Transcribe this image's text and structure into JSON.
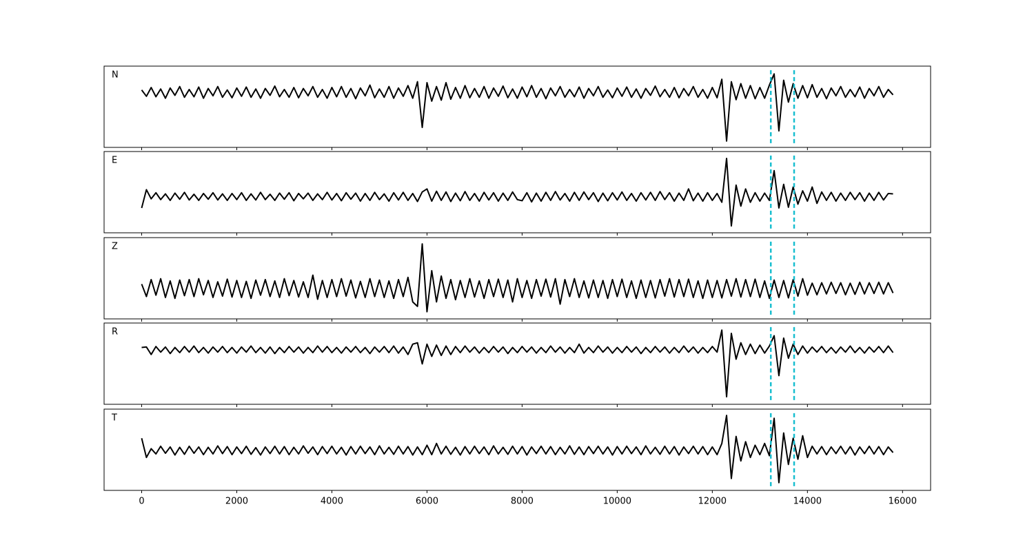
{
  "chart_data": {
    "type": "line",
    "color": "#000000",
    "vline_color": "#17becf",
    "xlim": [
      -790,
      16590
    ],
    "xticks": [
      0,
      2000,
      4000,
      6000,
      8000,
      10000,
      12000,
      14000,
      16000
    ],
    "vlines": [
      13230,
      13720
    ],
    "x": [
      0,
      100,
      200,
      300,
      400,
      500,
      600,
      700,
      800,
      900,
      1000,
      1100,
      1200,
      1300,
      1400,
      1500,
      1600,
      1700,
      1800,
      1900,
      2000,
      2100,
      2200,
      2300,
      2400,
      2500,
      2600,
      2700,
      2800,
      2900,
      3000,
      3100,
      3200,
      3300,
      3400,
      3500,
      3600,
      3700,
      3800,
      3900,
      4000,
      4100,
      4200,
      4300,
      4400,
      4500,
      4600,
      4700,
      4800,
      4900,
      5000,
      5100,
      5200,
      5300,
      5400,
      5500,
      5600,
      5700,
      5800,
      5900,
      6000,
      6100,
      6200,
      6300,
      6400,
      6500,
      6600,
      6700,
      6800,
      6900,
      7000,
      7100,
      7200,
      7300,
      7400,
      7500,
      7600,
      7700,
      7800,
      7900,
      8000,
      8100,
      8200,
      8300,
      8400,
      8500,
      8600,
      8700,
      8800,
      8900,
      9000,
      9100,
      9200,
      9300,
      9400,
      9500,
      9600,
      9700,
      9800,
      9900,
      10000,
      10100,
      10200,
      10300,
      10400,
      10500,
      10600,
      10700,
      10800,
      10900,
      11000,
      11100,
      11200,
      11300,
      11400,
      11500,
      11600,
      11700,
      11800,
      11900,
      12000,
      12100,
      12200,
      12300,
      12400,
      12500,
      12600,
      12700,
      12800,
      12900,
      13000,
      13100,
      13200,
      13300,
      13400,
      13500,
      13600,
      13700,
      13800,
      13900,
      14000,
      14100,
      14200,
      14300,
      14400,
      14500,
      14600,
      14700,
      14800,
      14900,
      15000,
      15100,
      15200,
      15300,
      15400,
      15500,
      15600,
      15700,
      15800
    ],
    "series": [
      {
        "name": "N",
        "ylim": [
          -1.13,
          0.54
        ],
        "values": [
          0.05,
          -0.08,
          0.1,
          -0.09,
          0.07,
          -0.12,
          0.09,
          -0.06,
          0.12,
          -0.1,
          0.06,
          -0.09,
          0.11,
          -0.12,
          0.08,
          -0.07,
          0.12,
          -0.1,
          0.05,
          -0.11,
          0.09,
          -0.08,
          0.11,
          -0.1,
          0.07,
          -0.12,
          0.08,
          -0.06,
          0.13,
          -0.09,
          0.06,
          -0.1,
          0.1,
          -0.11,
          0.08,
          -0.07,
          0.12,
          -0.1,
          0.06,
          -0.12,
          0.1,
          -0.09,
          0.12,
          -0.1,
          0.08,
          -0.13,
          0.09,
          -0.07,
          0.15,
          -0.11,
          0.07,
          -0.1,
          0.12,
          -0.12,
          0.09,
          -0.08,
          0.14,
          -0.12,
          0.22,
          -0.72,
          0.2,
          -0.18,
          0.12,
          -0.16,
          0.2,
          -0.14,
          0.1,
          -0.12,
          0.14,
          -0.11,
          0.08,
          -0.1,
          0.12,
          -0.12,
          0.09,
          -0.08,
          0.13,
          -0.11,
          0.07,
          -0.12,
          0.11,
          -0.09,
          0.14,
          -0.1,
          0.08,
          -0.13,
          0.09,
          -0.07,
          0.12,
          -0.1,
          0.06,
          -0.09,
          0.11,
          -0.12,
          0.08,
          -0.07,
          0.12,
          -0.1,
          0.05,
          -0.11,
          0.09,
          -0.08,
          0.11,
          -0.1,
          0.07,
          -0.12,
          0.08,
          -0.06,
          0.13,
          -0.09,
          0.06,
          -0.1,
          0.1,
          -0.11,
          0.08,
          -0.07,
          0.12,
          -0.1,
          0.06,
          -0.12,
          0.1,
          -0.11,
          0.27,
          -1.0,
          0.22,
          -0.15,
          0.18,
          -0.12,
          0.14,
          -0.13,
          0.1,
          -0.12,
          0.15,
          0.38,
          -0.79,
          0.25,
          -0.2,
          0.18,
          -0.12,
          0.14,
          -0.11,
          0.16,
          -0.1,
          0.08,
          -0.13,
          0.09,
          -0.07,
          0.12,
          -0.1,
          0.06,
          -0.09,
          0.11,
          -0.12,
          0.08,
          -0.07,
          0.12,
          -0.1,
          0.06,
          -0.05
        ]
      },
      {
        "name": "E",
        "ylim": [
          -0.95,
          1.18
        ],
        "values": [
          -0.3,
          0.18,
          -0.06,
          0.1,
          -0.08,
          0.07,
          -0.1,
          0.09,
          -0.07,
          0.11,
          -0.09,
          0.06,
          -0.1,
          0.08,
          -0.07,
          0.1,
          -0.09,
          0.07,
          -0.1,
          0.08,
          -0.08,
          0.1,
          -0.1,
          0.07,
          -0.09,
          0.11,
          -0.08,
          0.06,
          -0.1,
          0.09,
          -0.07,
          0.1,
          -0.11,
          0.08,
          -0.06,
          0.09,
          -0.1,
          0.07,
          -0.08,
          0.11,
          -0.09,
          0.08,
          -0.11,
          0.1,
          -0.07,
          0.09,
          -0.12,
          0.08,
          -0.1,
          0.11,
          -0.08,
          0.07,
          -0.12,
          0.1,
          -0.09,
          0.11,
          -0.1,
          0.08,
          -0.13,
          0.12,
          0.2,
          -0.12,
          0.14,
          -0.1,
          0.12,
          -0.13,
          0.09,
          -0.11,
          0.13,
          -0.1,
          0.08,
          -0.12,
          0.11,
          -0.09,
          0.1,
          -0.12,
          0.09,
          -0.1,
          0.12,
          -0.08,
          -0.11,
          0.1,
          -0.14,
          0.09,
          -0.12,
          0.11,
          -0.1,
          0.13,
          -0.09,
          0.08,
          -0.12,
          0.11,
          -0.1,
          0.12,
          -0.08,
          0.1,
          -0.13,
          0.09,
          -0.11,
          0.1,
          -0.09,
          0.12,
          -0.1,
          0.08,
          -0.12,
          0.1,
          -0.09,
          0.11,
          -0.1,
          0.13,
          -0.08,
          0.1,
          -0.12,
          0.09,
          -0.1,
          0.2,
          -0.11,
          0.09,
          -0.12,
          0.1,
          -0.1,
          0.08,
          -0.15,
          1.0,
          -0.77,
          0.3,
          -0.25,
          0.2,
          -0.15,
          0.1,
          -0.12,
          0.09,
          -0.1,
          0.68,
          -0.3,
          0.32,
          -0.28,
          0.25,
          -0.2,
          0.15,
          -0.12,
          0.25,
          -0.18,
          0.12,
          -0.1,
          0.11,
          -0.12,
          0.09,
          -0.1,
          0.11,
          -0.08,
          0.1,
          -0.12,
          0.09,
          -0.1,
          0.11,
          -0.09,
          0.08,
          0.07
        ]
      },
      {
        "name": "Z",
        "ylim": [
          -0.68,
          1.14
        ],
        "values": [
          0.1,
          -0.18,
          0.2,
          -0.15,
          0.22,
          -0.2,
          0.17,
          -0.22,
          0.19,
          -0.16,
          0.2,
          -0.18,
          0.22,
          -0.14,
          0.18,
          -0.2,
          0.15,
          -0.17,
          0.21,
          -0.19,
          0.18,
          -0.2,
          0.16,
          -0.22,
          0.19,
          -0.15,
          0.2,
          -0.18,
          0.17,
          -0.2,
          0.22,
          -0.16,
          0.18,
          -0.19,
          0.15,
          -0.2,
          0.3,
          -0.24,
          0.18,
          -0.2,
          0.2,
          -0.18,
          0.22,
          -0.17,
          0.19,
          -0.21,
          0.16,
          -0.2,
          0.22,
          -0.18,
          0.19,
          -0.2,
          0.17,
          -0.22,
          0.2,
          -0.18,
          0.25,
          -0.3,
          -0.4,
          1.0,
          -0.52,
          0.4,
          -0.3,
          0.28,
          -0.22,
          0.2,
          -0.25,
          0.18,
          -0.2,
          0.22,
          -0.19,
          0.17,
          -0.22,
          0.2,
          -0.18,
          0.21,
          -0.2,
          0.19,
          -0.3,
          0.22,
          -0.2,
          0.18,
          -0.22,
          0.2,
          -0.17,
          0.21,
          -0.19,
          0.22,
          -0.35,
          0.2,
          -0.18,
          0.22,
          -0.2,
          0.17,
          -0.21,
          0.19,
          -0.2,
          0.18,
          -0.22,
          0.2,
          -0.18,
          0.21,
          -0.2,
          0.17,
          -0.22,
          0.19,
          -0.2,
          0.18,
          -0.21,
          0.2,
          -0.17,
          0.22,
          -0.19,
          0.2,
          -0.18,
          0.21,
          -0.2,
          0.17,
          -0.22,
          0.19,
          -0.2,
          0.18,
          -0.21,
          0.2,
          -0.17,
          0.22,
          -0.19,
          0.2,
          -0.18,
          0.21,
          -0.2,
          0.17,
          -0.22,
          0.19,
          -0.2,
          0.18,
          -0.21,
          0.2,
          -0.17,
          0.22,
          -0.15,
          0.12,
          -0.14,
          0.13,
          -0.12,
          0.14,
          -0.11,
          0.13,
          -0.14,
          0.12,
          -0.13,
          0.14,
          -0.12,
          0.13,
          -0.11,
          0.14,
          -0.12,
          0.13,
          -0.1
        ]
      },
      {
        "name": "R",
        "ylim": [
          -1.16,
          0.57
        ],
        "values": [
          0.05,
          0.06,
          -0.1,
          0.07,
          -0.05,
          0.06,
          -0.08,
          0.05,
          -0.06,
          0.07,
          -0.05,
          0.08,
          -0.06,
          0.05,
          -0.07,
          0.06,
          -0.05,
          0.07,
          -0.06,
          0.05,
          -0.07,
          0.06,
          -0.05,
          0.08,
          -0.06,
          0.05,
          -0.07,
          0.06,
          -0.08,
          0.05,
          -0.06,
          0.07,
          -0.05,
          0.06,
          -0.07,
          0.05,
          -0.06,
          0.08,
          -0.05,
          0.07,
          -0.06,
          0.05,
          -0.07,
          0.06,
          -0.05,
          0.07,
          -0.06,
          0.05,
          -0.08,
          0.06,
          -0.05,
          0.07,
          -0.06,
          0.08,
          -0.07,
          0.06,
          -0.1,
          0.12,
          0.15,
          -0.3,
          0.12,
          -0.14,
          0.1,
          -0.12,
          0.08,
          -0.1,
          0.07,
          -0.06,
          0.08,
          -0.05,
          0.06,
          -0.07,
          0.05,
          -0.06,
          0.07,
          -0.05,
          0.06,
          -0.08,
          0.05,
          -0.06,
          0.07,
          -0.05,
          0.06,
          -0.07,
          0.05,
          -0.06,
          0.08,
          -0.05,
          0.06,
          -0.07,
          0.05,
          -0.06,
          0.12,
          -0.07,
          0.05,
          -0.06,
          0.08,
          -0.05,
          0.06,
          -0.07,
          0.05,
          -0.06,
          0.07,
          -0.05,
          0.06,
          -0.08,
          0.05,
          -0.06,
          0.07,
          -0.05,
          0.06,
          -0.07,
          0.05,
          -0.06,
          0.08,
          -0.05,
          0.06,
          -0.07,
          0.05,
          -0.06,
          0.07,
          -0.05,
          0.42,
          -1.0,
          0.35,
          -0.2,
          0.15,
          -0.1,
          0.12,
          -0.08,
          0.1,
          -0.07,
          0.08,
          0.3,
          -0.55,
          0.25,
          -0.18,
          0.12,
          -0.1,
          0.08,
          -0.07,
          0.06,
          -0.05,
          0.07,
          -0.06,
          0.05,
          -0.07,
          0.06,
          -0.05,
          0.08,
          -0.06,
          0.05,
          -0.07,
          0.06,
          -0.05,
          0.07,
          -0.06,
          0.08,
          -0.06
        ]
      },
      {
        "name": "T",
        "ylim": [
          -1.14,
          1.18
        ],
        "values": [
          0.35,
          -0.2,
          0.05,
          -0.1,
          0.12,
          -0.08,
          0.1,
          -0.13,
          0.09,
          -0.11,
          0.12,
          -0.08,
          0.1,
          -0.12,
          0.09,
          -0.1,
          0.13,
          -0.09,
          0.11,
          -0.12,
          0.1,
          -0.09,
          0.12,
          -0.11,
          0.08,
          -0.13,
          0.1,
          -0.09,
          0.12,
          -0.1,
          0.11,
          -0.12,
          0.09,
          -0.1,
          0.13,
          -0.08,
          0.1,
          -0.12,
          0.11,
          -0.09,
          0.12,
          -0.1,
          0.09,
          -0.13,
          0.11,
          -0.1,
          0.12,
          -0.09,
          0.1,
          -0.12,
          0.13,
          -0.1,
          0.09,
          -0.11,
          0.12,
          -0.1,
          0.11,
          -0.13,
          0.1,
          -0.12,
          0.15,
          -0.12,
          0.2,
          -0.1,
          0.12,
          -0.11,
          0.09,
          -0.13,
          0.11,
          -0.1,
          0.12,
          -0.09,
          0.1,
          -0.12,
          0.13,
          -0.1,
          0.09,
          -0.11,
          0.12,
          -0.1,
          0.11,
          -0.13,
          0.1,
          -0.09,
          0.12,
          -0.1,
          0.11,
          -0.12,
          0.09,
          -0.1,
          0.13,
          -0.11,
          0.1,
          -0.12,
          0.11,
          -0.09,
          0.12,
          -0.1,
          0.1,
          -0.13,
          0.11,
          -0.1,
          0.12,
          -0.09,
          0.1,
          -0.12,
          0.13,
          -0.1,
          0.09,
          -0.11,
          0.12,
          -0.1,
          0.11,
          -0.13,
          0.1,
          -0.09,
          0.12,
          -0.1,
          0.11,
          -0.12,
          0.1,
          -0.12,
          0.2,
          1.0,
          -0.8,
          0.4,
          -0.3,
          0.25,
          -0.2,
          0.15,
          -0.12,
          0.2,
          -0.15,
          0.92,
          -0.92,
          0.5,
          -0.4,
          0.35,
          -0.25,
          0.42,
          -0.2,
          0.12,
          -0.1,
          0.11,
          -0.12,
          0.1,
          -0.09,
          0.12,
          -0.1,
          0.11,
          -0.13,
          0.1,
          -0.09,
          0.12,
          -0.1,
          0.11,
          -0.12,
          0.1,
          -0.06
        ]
      }
    ]
  }
}
